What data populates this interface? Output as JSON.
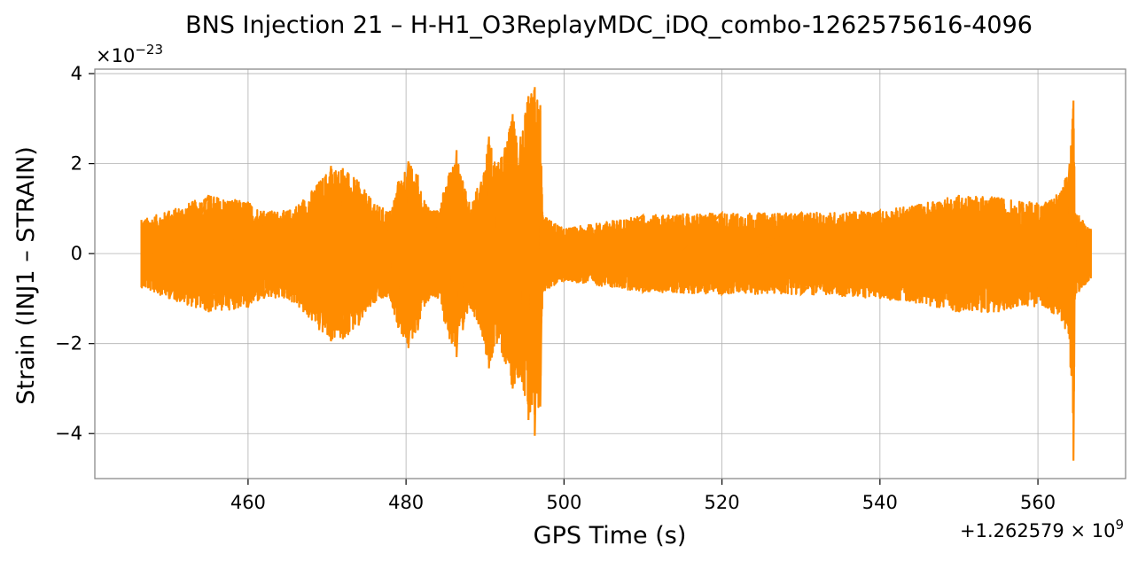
{
  "chart_data": {
    "type": "line",
    "title": "BNS Injection 21 – H-H1_O3ReplayMDC_iDQ_combo-1262575616-4096",
    "xlabel": "GPS Time (s)",
    "ylabel": "Strain (INJ1 – STRAIN)",
    "x_offset_label": "+1.262579 × 10",
    "x_offset_exponent": "9",
    "y_scale_label": "×10",
    "y_scale_exponent": "−23",
    "xlim": [
      440.6,
      571.1
    ],
    "ylim": [
      -5,
      4.1
    ],
    "xticks": [
      460,
      480,
      500,
      520,
      540,
      560
    ],
    "xtick_labels": [
      "460",
      "480",
      "500",
      "520",
      "540",
      "560"
    ],
    "yticks": [
      4,
      2,
      0,
      -2,
      -4
    ],
    "ytick_labels": [
      "4",
      "2",
      "0",
      "−2",
      "−4"
    ],
    "grid": true,
    "line_color": "#ff8c00",
    "series": [
      {
        "x_range": [
          446.5,
          566.7
        ],
        "envelope": {
          "x": [
            446.5,
            450,
            455,
            460,
            462,
            465,
            467,
            469,
            470.5,
            472,
            474,
            476,
            478,
            479,
            480.3,
            481.5,
            482.5,
            484,
            485.5,
            486.4,
            487.2,
            488,
            489.5,
            490.5,
            491.5,
            492.5,
            493.5,
            494.5,
            495.5,
            496.3,
            497.0,
            497.3,
            500,
            510,
            520,
            530,
            540,
            545,
            550,
            555,
            558,
            561,
            563,
            564.0,
            564.5,
            564.7,
            565.2,
            566.7
          ],
          "upper": [
            0.75,
            0.95,
            1.3,
            1.15,
            0.95,
            0.95,
            1.2,
            1.6,
            1.95,
            1.9,
            1.6,
            1.1,
            0.95,
            1.6,
            2.05,
            1.75,
            1.1,
            0.95,
            1.8,
            2.3,
            1.6,
            1.15,
            1.6,
            2.6,
            1.95,
            2.35,
            3.1,
            2.6,
            3.5,
            3.7,
            3.3,
            0.85,
            0.55,
            0.85,
            0.9,
            0.9,
            0.95,
            1.1,
            1.3,
            1.25,
            1.15,
            1.15,
            1.4,
            2.0,
            3.4,
            0.9,
            0.85,
            0.55
          ],
          "lower": [
            -0.75,
            -1.0,
            -1.3,
            -1.2,
            -1.0,
            -1.0,
            -1.3,
            -1.7,
            -1.95,
            -1.9,
            -1.6,
            -1.1,
            -1.0,
            -1.65,
            -2.1,
            -1.7,
            -1.1,
            -1.0,
            -1.9,
            -2.3,
            -1.7,
            -1.15,
            -1.7,
            -2.55,
            -2.0,
            -2.4,
            -3.0,
            -2.7,
            -3.7,
            -4.05,
            -3.4,
            -0.85,
            -0.6,
            -0.85,
            -0.9,
            -0.9,
            -1.0,
            -1.1,
            -1.3,
            -1.3,
            -1.15,
            -1.2,
            -1.5,
            -1.9,
            -4.6,
            -0.95,
            -0.85,
            -0.55
          ]
        }
      }
    ]
  }
}
